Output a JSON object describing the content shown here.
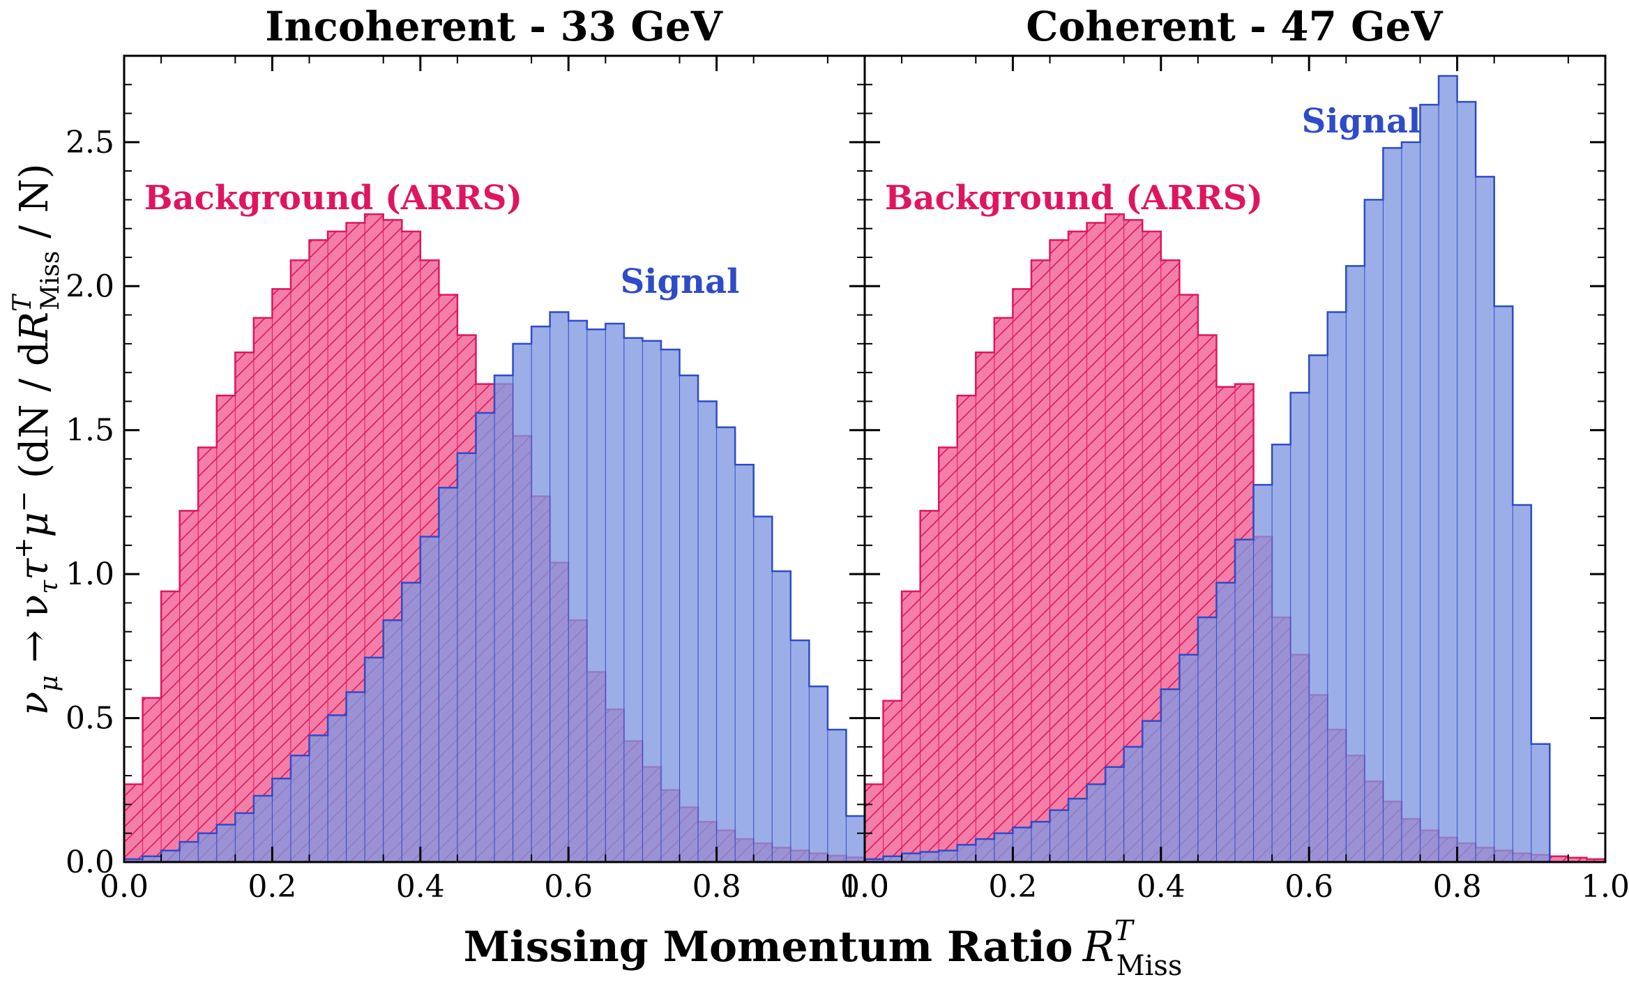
{
  "figure": {
    "xlabel": "Missing Momentum Ratio",
    "xlabel_math": "R",
    "xlabel_sup": "T",
    "xlabel_sub": "Miss",
    "ylabel_math": "ν",
    "ylabel_sub1": "μ",
    "ylabel_arrow": " → ν",
    "ylabel_sub2": "τ",
    "ylabel_tau": "τ",
    "ylabel_plus": "+",
    "ylabel_mu": "μ",
    "ylabel_minus": "−",
    "ylabel_open": " (dN / d",
    "ylabel_R": "R",
    "ylabel_Rsup": "T",
    "ylabel_Rsub": "Miss",
    "ylabel_close": " / N)"
  },
  "colors": {
    "background_fill": "#f2709d",
    "background_edge": "#e0155f",
    "background_label": "#e0155f",
    "signal_fill": "#8097e0",
    "signal_edge": "#2e4bc8",
    "signal_label": "#2e4bc8",
    "hatch": "#e0155f"
  },
  "chart_data": [
    {
      "type": "bar",
      "title": "Incoherent - 33 GeV",
      "xlim": [
        0.0,
        1.0
      ],
      "ylim": [
        0.0,
        2.8
      ],
      "xticks": [
        "0.0",
        "0.2",
        "0.4",
        "0.6",
        "0.8",
        "1.0"
      ],
      "yticks": [
        "0.0",
        "0.5",
        "1.0",
        "1.5",
        "2.0",
        "2.5"
      ],
      "bin_width": 0.025,
      "bin_edges_start": 0.0,
      "grid": false,
      "series": [
        {
          "name": "Background (ARRS)",
          "style": "hatched",
          "values": [
            0.27,
            0.57,
            0.94,
            1.22,
            1.44,
            1.62,
            1.77,
            1.89,
            1.99,
            2.09,
            2.16,
            2.19,
            2.22,
            2.25,
            2.23,
            2.19,
            2.09,
            1.97,
            1.83,
            1.66,
            1.66,
            1.48,
            1.27,
            1.04,
            0.84,
            0.66,
            0.53,
            0.42,
            0.33,
            0.25,
            0.19,
            0.14,
            0.11,
            0.08,
            0.065,
            0.05,
            0.04,
            0.03,
            0.022,
            0.016
          ]
        },
        {
          "name": "Signal",
          "style": "solid",
          "values": [
            0.01,
            0.02,
            0.04,
            0.07,
            0.1,
            0.13,
            0.17,
            0.23,
            0.29,
            0.37,
            0.44,
            0.51,
            0.59,
            0.71,
            0.84,
            0.97,
            1.13,
            1.3,
            1.42,
            1.56,
            1.69,
            1.8,
            1.86,
            1.91,
            1.88,
            1.85,
            1.87,
            1.82,
            1.81,
            1.78,
            1.69,
            1.6,
            1.51,
            1.38,
            1.2,
            1.01,
            0.77,
            0.61,
            0.46,
            0.16
          ]
        }
      ]
    },
    {
      "type": "bar",
      "title": "Coherent - 47 GeV",
      "xlim": [
        0.0,
        1.0
      ],
      "ylim": [
        0.0,
        2.8
      ],
      "xticks": [
        "0.0",
        "0.2",
        "0.4",
        "0.6",
        "0.8",
        "1.0"
      ],
      "yticks": [
        "0.0",
        "0.5",
        "1.0",
        "1.5",
        "2.0",
        "2.5"
      ],
      "bin_width": 0.025,
      "bin_edges_start": 0.0,
      "grid": false,
      "series": [
        {
          "name": "Background (ARRS)",
          "style": "hatched",
          "values": [
            0.27,
            0.56,
            0.94,
            1.22,
            1.44,
            1.62,
            1.77,
            1.89,
            1.99,
            2.09,
            2.16,
            2.19,
            2.22,
            2.25,
            2.23,
            2.19,
            2.09,
            1.97,
            1.83,
            1.65,
            1.66,
            1.13,
            0.85,
            0.72,
            0.58,
            0.46,
            0.37,
            0.28,
            0.21,
            0.15,
            0.11,
            0.085,
            0.065,
            0.05,
            0.04,
            0.03,
            0.025,
            0.02,
            0.015,
            0.01
          ]
        },
        {
          "name": "Signal",
          "style": "solid",
          "values": [
            0.01,
            0.02,
            0.03,
            0.035,
            0.04,
            0.06,
            0.08,
            0.1,
            0.12,
            0.14,
            0.18,
            0.22,
            0.27,
            0.33,
            0.4,
            0.49,
            0.6,
            0.72,
            0.85,
            0.97,
            1.12,
            1.31,
            1.45,
            1.63,
            1.76,
            1.91,
            2.07,
            2.3,
            2.48,
            2.5,
            2.63,
            2.73,
            2.64,
            2.38,
            1.93,
            1.24,
            0.41,
            0.0,
            0.0,
            0.0
          ]
        }
      ]
    }
  ]
}
